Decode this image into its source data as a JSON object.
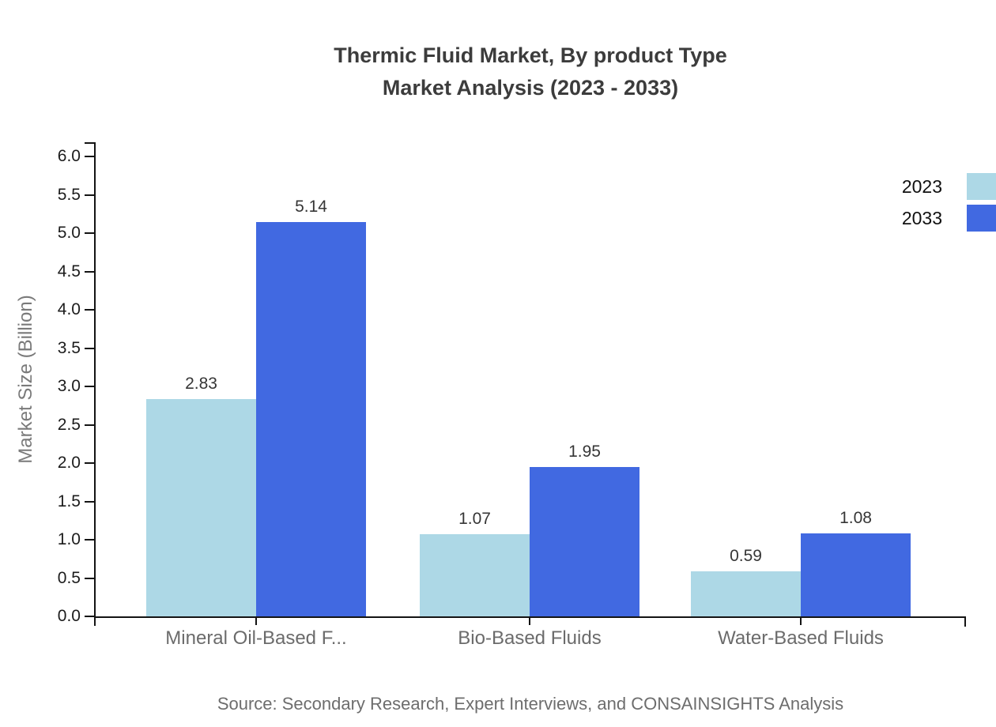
{
  "title": {
    "line1": "Thermic Fluid Market, By product Type",
    "line2": "Market Analysis (2023 - 2033)"
  },
  "source": "Source: Secondary Research, Expert Interviews, and CONSAINSIGHTS Analysis",
  "chart_data": {
    "type": "bar",
    "title": "Thermic Fluid Market, By product Type Market Analysis (2023 - 2033)",
    "categories": [
      "Mineral Oil-Based F...",
      "Bio-Based Fluids",
      "Water-Based Fluids"
    ],
    "series": [
      {
        "name": "2023",
        "color": "#ADD8E6",
        "values": [
          2.83,
          1.07,
          0.59
        ]
      },
      {
        "name": "2033",
        "color": "#4169E1",
        "values": [
          5.14,
          1.95,
          1.08
        ]
      }
    ],
    "xlabel": "",
    "ylabel": "Market Size (Billion)",
    "ylim": [
      0,
      6
    ],
    "ytick_step": 0.5,
    "value_labels": true,
    "grid": false,
    "legend_position": "top-right",
    "axis_color": "#141414"
  }
}
